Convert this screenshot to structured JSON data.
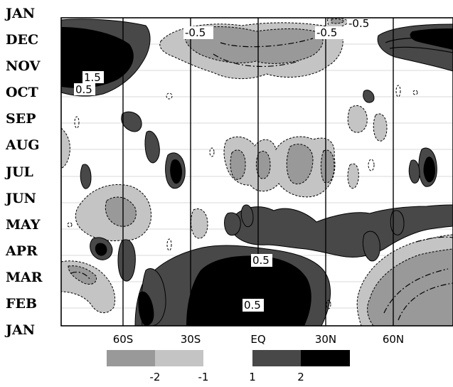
{
  "chart_data": {
    "type": "heatmap",
    "title": "",
    "xlabel": "",
    "ylabel": "",
    "x_ticks": [
      "60S",
      "30S",
      "EQ",
      "30N",
      "60N"
    ],
    "x_tick_values": [
      -60,
      -30,
      0,
      30,
      60
    ],
    "xlim": [
      -87,
      87
    ],
    "y_ticks": [
      "JAN",
      "DEC",
      "NOV",
      "OCT",
      "SEP",
      "AUG",
      "JUL",
      "JUN",
      "MAY",
      "APR",
      "MAR",
      "FEB",
      "JAN"
    ],
    "contour_labels": [
      {
        "text": "-0.5",
        "lat": 4,
        "month": 11.2
      },
      {
        "text": "-0.5",
        "lat": 34,
        "month": 11.2
      },
      {
        "text": "-0.5",
        "lat": 46,
        "month": 11.65
      },
      {
        "text": "1.5",
        "lat": -80,
        "month": 9.6
      },
      {
        "text": "0.5",
        "lat": -83,
        "month": 9.1
      },
      {
        "text": "0.5",
        "lat": 3,
        "month": 2.6
      },
      {
        "text": "0.5",
        "lat": -3,
        "month": 0.85
      }
    ],
    "legend": {
      "colors": [
        "#999999",
        "#c4c4c4",
        "#484848",
        "#000000"
      ],
      "labels": [
        "-2",
        "-1",
        "1",
        "2"
      ]
    },
    "grid": false
  }
}
